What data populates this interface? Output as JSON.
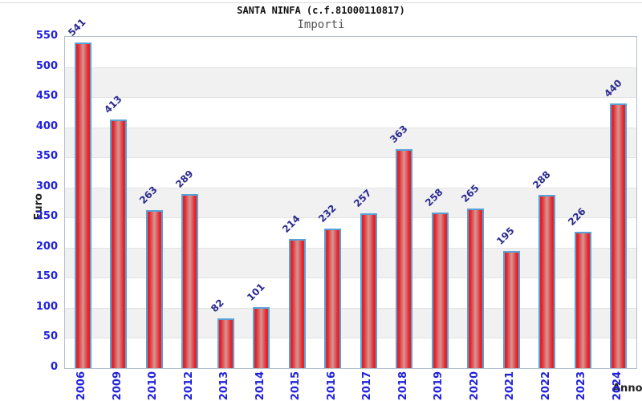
{
  "chart_data": {
    "type": "bar",
    "title": "SANTA NINFA (c.f.81000110817)",
    "subtitle": "Importi",
    "xlabel": "Anno",
    "ylabel": "Euro",
    "categories": [
      "2006",
      "2009",
      "2010",
      "2012",
      "2013",
      "2014",
      "2015",
      "2016",
      "2017",
      "2018",
      "2019",
      "2020",
      "2021",
      "2022",
      "2023",
      "2024"
    ],
    "values": [
      541,
      413,
      263,
      289,
      82,
      101,
      214,
      232,
      257,
      363,
      258,
      265,
      195,
      288,
      226,
      440
    ],
    "ylim": [
      0,
      550
    ],
    "ytick_step": 50,
    "grid": "horizontal-bands-alternating",
    "legend": "none",
    "colors": {
      "bar_edge_red": "#e42328",
      "bar_center_red": "#d69795",
      "bar_border": "#58a2d8",
      "tick_label": "#2222dd",
      "value_label": "#2a2a90",
      "title_text": "#111111",
      "subtitle_text": "#555555",
      "axis_label_text": "#222222",
      "band_gray": "#f1f1f1",
      "gridline": "#e3e3e3",
      "plot_border": "#b4bfce"
    }
  }
}
